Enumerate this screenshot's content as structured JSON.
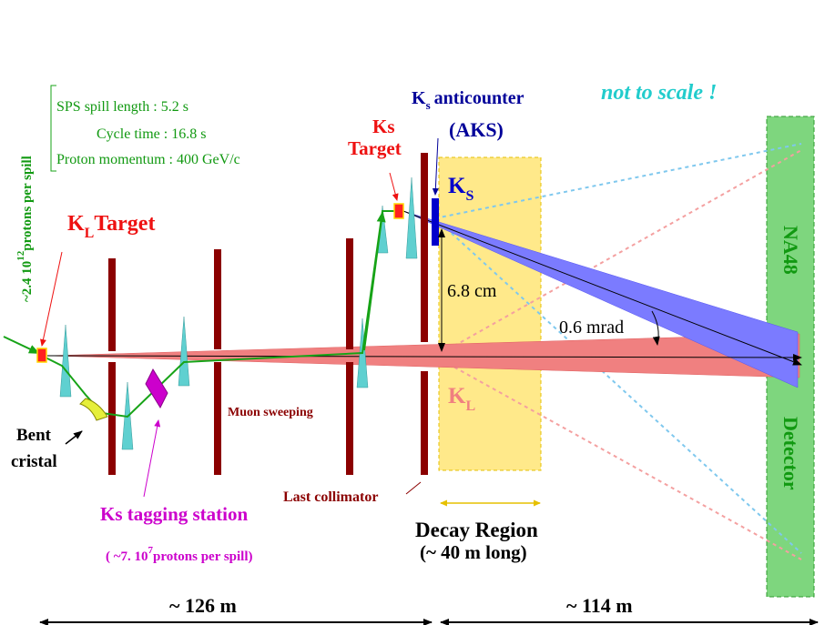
{
  "header": {
    "not_to_scale": "not  to scale !"
  },
  "info_box": {
    "spill_length": "SPS spill length : 5.2 s",
    "cycle_time": "Cycle time : 16.8 s",
    "proton_momentum": "Proton momentum : 400 GeV/c"
  },
  "proton_flux": {
    "mantissa": "~2.4 10",
    "exponent": "12",
    "unit": "protons per spill"
  },
  "kl_target": {
    "symbol": "K",
    "subscript": "L",
    "word": "Target"
  },
  "ks_target": {
    "line1": "Ks",
    "line2": "Target"
  },
  "aks": {
    "symbol": "K",
    "subscript": "s",
    "word": "anticounter",
    "abbrev": "(AKS)"
  },
  "beams": {
    "ks_symbol": "K",
    "ks_subscript": "S",
    "kl_symbol": "K",
    "kl_subscript": "L"
  },
  "measurements": {
    "separation": "6.8 cm",
    "angle": "0.6 mrad"
  },
  "labels": {
    "bent_line1": "Bent",
    "bent_line2": "cristal",
    "muon_sweeping": "Muon sweeping",
    "last_collimator": "Last collimator",
    "tagging_station": "Ks tagging station",
    "tagging_flux_pre": "( ~7. 10",
    "tagging_flux_exp": "7",
    "tagging_flux_post": "protons per spill)",
    "decay_region_line1": "Decay Region",
    "decay_region_line2": "(~ 40 m long)"
  },
  "detector": {
    "name_top": "NA48",
    "name_bottom": "Detector"
  },
  "distances": {
    "left": "~ 126 m",
    "right": "~ 114 m"
  },
  "colors": {
    "collimator": "#8b0000",
    "kl_beam": "#f08080",
    "ks_beam": "#7b7bff",
    "decay_region": "#ffe98a",
    "detector": "#7ed67e",
    "proton_path": "#17a317",
    "magnet": "#5fd0d0",
    "tagging_station": "#cc00cc",
    "aks": "#0000cc",
    "red_label": "#ee1111",
    "navy": "#000099",
    "cyan_text": "#22cccc",
    "green_text": "#119911"
  }
}
